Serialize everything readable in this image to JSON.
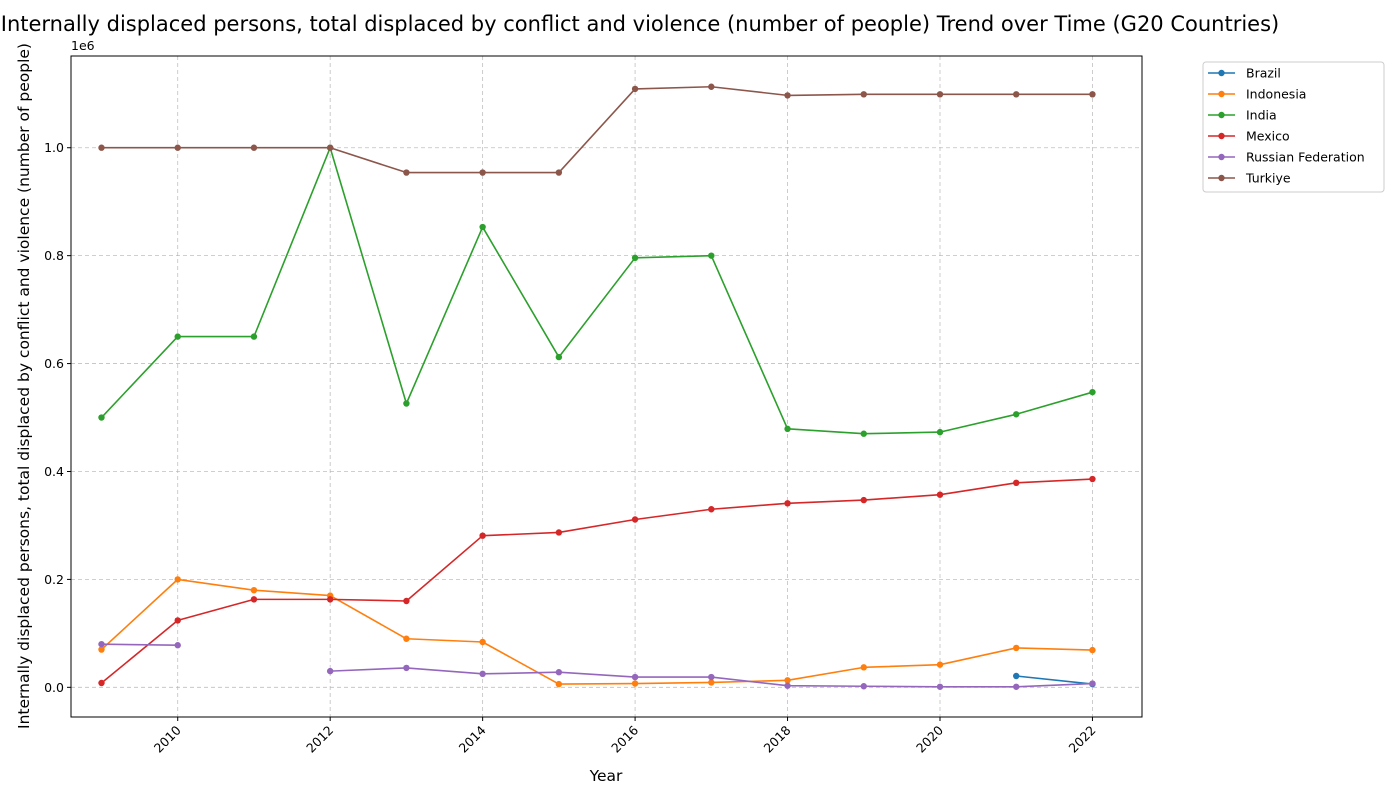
{
  "chart_data": {
    "type": "line",
    "title": "Internally displaced persons, total displaced by conflict and violence (number of people) Trend over Time (G20 Countries)",
    "xlabel": "Year",
    "ylabel": "Internally displaced persons, total displaced by conflict and violence (number of people)",
    "y_scale_label": "1e6",
    "xlim": [
      2008.6,
      2022.65
    ],
    "ylim": [
      -0.055,
      1.17
    ],
    "y_unit_multiplier": 1000000,
    "x_ticks": [
      2010,
      2012,
      2014,
      2016,
      2018,
      2020,
      2022
    ],
    "y_ticks": [
      0.0,
      0.2,
      0.4,
      0.6,
      0.8,
      1.0
    ],
    "y_tick_labels": [
      "0.0",
      "0.2",
      "0.4",
      "0.6",
      "0.8",
      "1.0"
    ],
    "grid": true,
    "legend_position": "outside-top-right",
    "series": [
      {
        "name": "Brazil",
        "color": "#1f77b4",
        "points": [
          [
            2021,
            0.021
          ],
          [
            2022,
            0.006
          ]
        ]
      },
      {
        "name": "Indonesia",
        "color": "#ff7f0e",
        "points": [
          [
            2009,
            0.07
          ],
          [
            2010,
            0.2
          ],
          [
            2011,
            0.18
          ],
          [
            2012,
            0.17
          ],
          [
            2013,
            0.09
          ],
          [
            2014,
            0.084
          ],
          [
            2015,
            0.006
          ],
          [
            2016,
            0.007
          ],
          [
            2017,
            0.009
          ],
          [
            2018,
            0.013
          ],
          [
            2019,
            0.037
          ],
          [
            2020,
            0.042
          ],
          [
            2021,
            0.073
          ],
          [
            2022,
            0.069
          ]
        ]
      },
      {
        "name": "India",
        "color": "#2ca02c",
        "points": [
          [
            2009,
            0.5
          ],
          [
            2010,
            0.65
          ],
          [
            2011,
            0.65
          ],
          [
            2012,
            1.0
          ],
          [
            2013,
            0.526
          ],
          [
            2014,
            0.853
          ],
          [
            2015,
            0.612
          ],
          [
            2016,
            0.796
          ],
          [
            2017,
            0.8
          ],
          [
            2018,
            0.479
          ],
          [
            2019,
            0.47
          ],
          [
            2020,
            0.473
          ],
          [
            2021,
            0.506
          ],
          [
            2022,
            0.547
          ]
        ]
      },
      {
        "name": "Mexico",
        "color": "#d62728",
        "points": [
          [
            2009,
            0.008
          ],
          [
            2010,
            0.124
          ],
          [
            2011,
            0.163
          ],
          [
            2012,
            0.163
          ],
          [
            2013,
            0.16
          ],
          [
            2014,
            0.281
          ],
          [
            2015,
            0.287
          ],
          [
            2016,
            0.311
          ],
          [
            2017,
            0.33
          ],
          [
            2018,
            0.341
          ],
          [
            2019,
            0.347
          ],
          [
            2020,
            0.357
          ],
          [
            2021,
            0.379
          ],
          [
            2022,
            0.386
          ]
        ]
      },
      {
        "name": "Russian Federation",
        "color": "#9467bd",
        "points": [
          [
            2009,
            0.08
          ],
          [
            2010,
            0.078
          ],
          [
            2012,
            0.03
          ],
          [
            2013,
            0.036
          ],
          [
            2014,
            0.025
          ],
          [
            2015,
            0.028
          ],
          [
            2016,
            0.019
          ],
          [
            2017,
            0.019
          ],
          [
            2018,
            0.003
          ],
          [
            2019,
            0.002
          ],
          [
            2020,
            0.001
          ],
          [
            2021,
            0.001
          ],
          [
            2022,
            0.007
          ]
        ]
      },
      {
        "name": "Turkiye",
        "color": "#8c564b",
        "points": [
          [
            2009,
            1.0
          ],
          [
            2010,
            1.0
          ],
          [
            2011,
            1.0
          ],
          [
            2012,
            1.0
          ],
          [
            2013,
            0.954
          ],
          [
            2014,
            0.954
          ],
          [
            2015,
            0.954
          ],
          [
            2016,
            1.109
          ],
          [
            2017,
            1.113
          ],
          [
            2018,
            1.097
          ],
          [
            2019,
            1.099
          ],
          [
            2020,
            1.099
          ],
          [
            2021,
            1.099
          ],
          [
            2022,
            1.099
          ]
        ]
      }
    ]
  }
}
